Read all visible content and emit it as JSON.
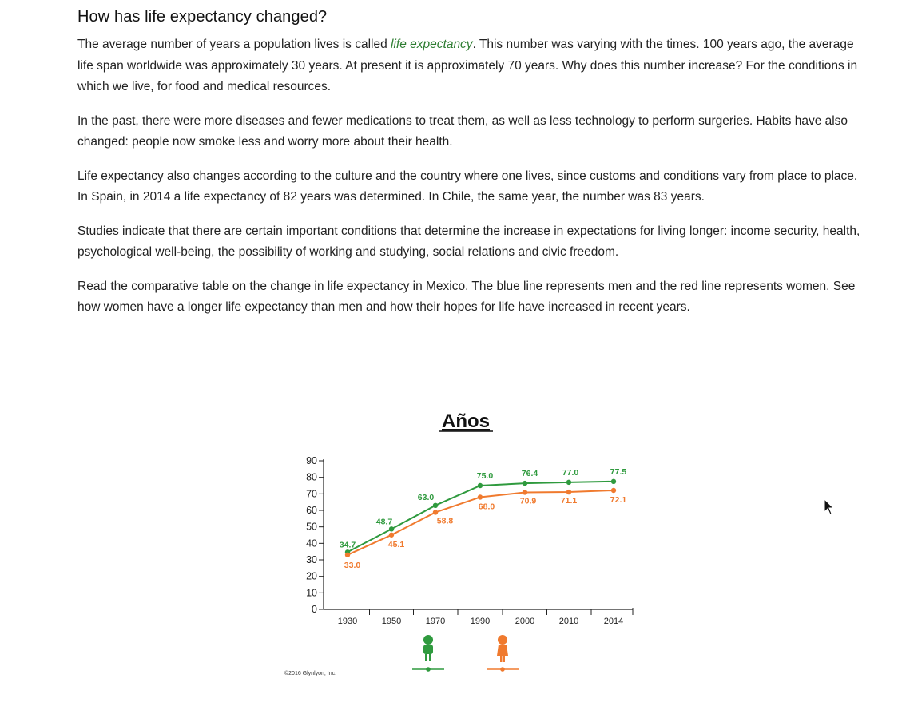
{
  "article": {
    "title": "How has life expectancy changed?",
    "p1_before": "The average number of years a population lives is called ",
    "p1_term": "life expectancy",
    "p1_after": ". This number was varying with the times. 100 years ago, the average life span worldwide was approximately 30 years. At present it is approximately 70 years. Why does this number increase? For the conditions in which we live, for food and medical resources.",
    "p2": "In the past, there were more diseases and fewer medications to treat them, as well as less technology to perform surgeries. Habits have also changed: people now smoke less and worry more about their health.",
    "p3": "Life expectancy also changes according to the culture and the country where one lives, since customs and conditions vary from place to place. In Spain, in 2014 a life expectancy of 82 years was determined. In Chile, the same year, the number was 83 years.",
    "p4": "Studies indicate that there are certain important conditions that determine the increase in expectations for living longer: income security, health, psychological well-being, the possibility of working and studying, social relations and civic freedom.",
    "p5": "Read the comparative table on the change in life expectancy in Mexico. The blue line represents men and the red line represents women. See how women have a longer life expectancy than men and how their hopes for life have increased in recent years."
  },
  "chart_data": {
    "type": "line",
    "title": "Años",
    "categories": [
      "1930",
      "1950",
      "1970",
      "1990",
      "2000",
      "2010",
      "2014"
    ],
    "ylim": [
      0,
      90
    ],
    "yticks": [
      "0",
      "10",
      "20",
      "30",
      "40",
      "50",
      "60",
      "70",
      "80",
      "90"
    ],
    "grid": false,
    "legend": "icons below x-axis",
    "series": [
      {
        "values": [
          34.7,
          48.7,
          63.0,
          75.0,
          76.4,
          77.0,
          77.5
        ],
        "labels": [
          "34.7",
          "48.7",
          "63.0",
          "75.0",
          "76.4",
          "77.0",
          "77.5"
        ],
        "color": "#2f9a3e"
      },
      {
        "values": [
          33.0,
          45.1,
          58.8,
          68.0,
          70.9,
          71.1,
          72.1
        ],
        "labels": [
          "33.0",
          "45.1",
          "58.8",
          "68.0",
          "70.9",
          "71.1",
          "72.1"
        ],
        "color": "#f07a2e"
      }
    ],
    "copyright": "©2016 Glynlyon, Inc."
  },
  "icons": {
    "men_legend": "man-figure-icon",
    "women_legend": "woman-figure-icon",
    "cursor": "mouse-pointer-icon"
  }
}
